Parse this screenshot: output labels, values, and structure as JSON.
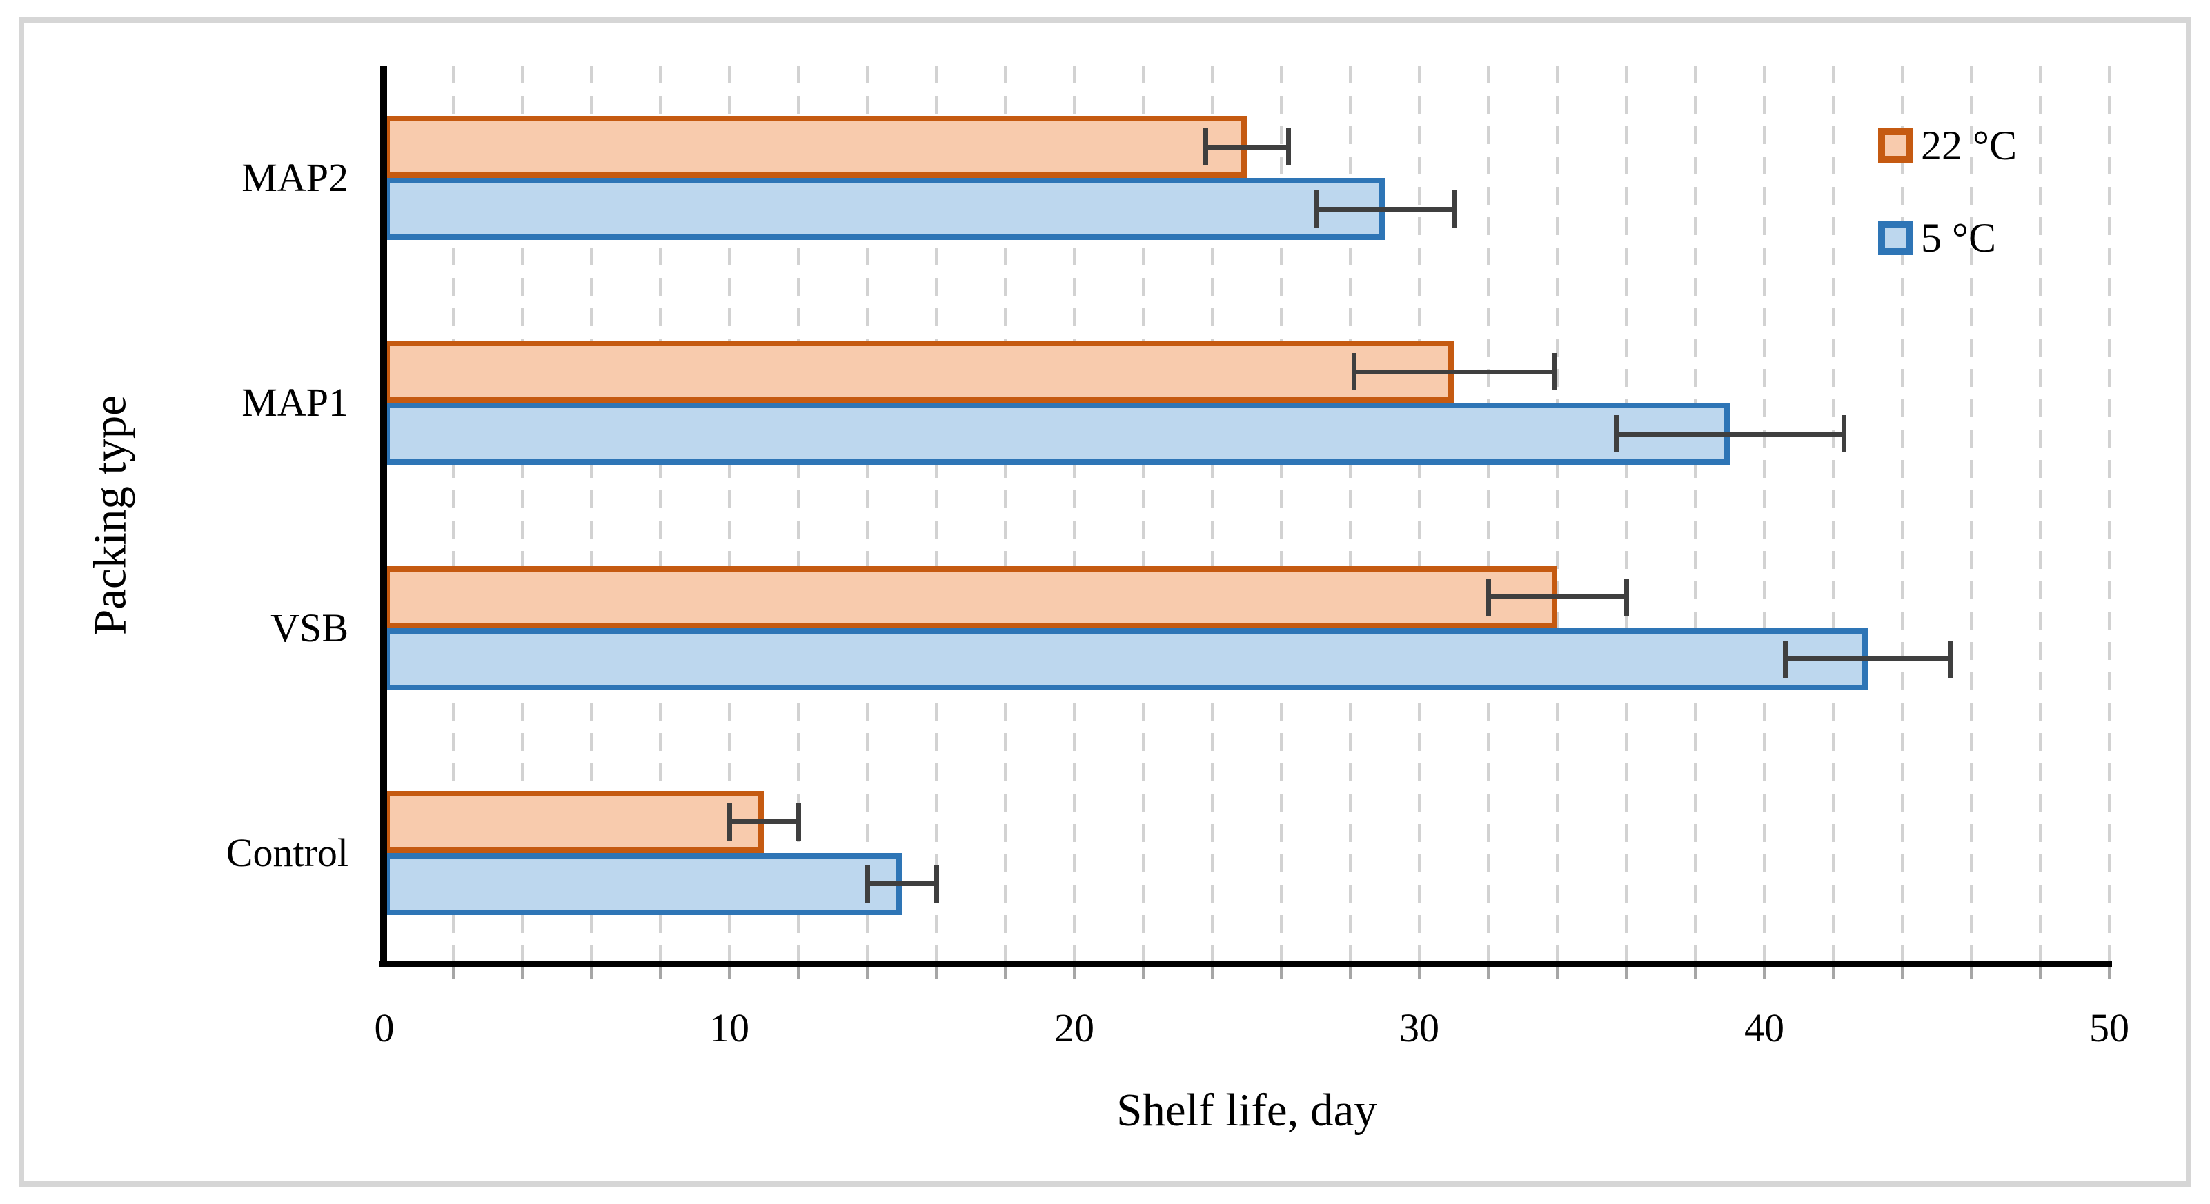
{
  "figure": {
    "background_color": "#ffffff",
    "frame_border_color": "#d6d6d6"
  },
  "chart_data": {
    "type": "bar",
    "orientation": "horizontal",
    "title": "",
    "xlabel": "Shelf life, day",
    "ylabel": "Packing type",
    "categories": [
      "MAP2",
      "MAP1",
      "VSB",
      "Control"
    ],
    "series": [
      {
        "name": "22 °C",
        "fill": "#F8CBAD",
        "border": "#C55A11",
        "values": [
          25,
          31,
          34,
          11
        ],
        "errors": [
          1.2,
          2.9,
          2.0,
          1.0
        ]
      },
      {
        "name": "5 °C",
        "fill": "#BDD7EE",
        "border": "#2E75B6",
        "values": [
          29,
          39,
          43,
          15
        ],
        "errors": [
          2.0,
          3.3,
          2.4,
          1.0
        ]
      }
    ],
    "xlim": [
      0,
      50
    ],
    "xticks": [
      0,
      10,
      20,
      30,
      40,
      50
    ],
    "x_tick_labels": [
      "0",
      "10",
      "20",
      "30",
      "40",
      "50"
    ],
    "gridline_step": 2,
    "grid_style": "dashed vertical, light gray",
    "error_bar_color": "#3f3f3f",
    "axis_color": "#000000",
    "legend_position": "top-right",
    "legend_items": [
      "22 °C",
      "5 °C"
    ]
  }
}
